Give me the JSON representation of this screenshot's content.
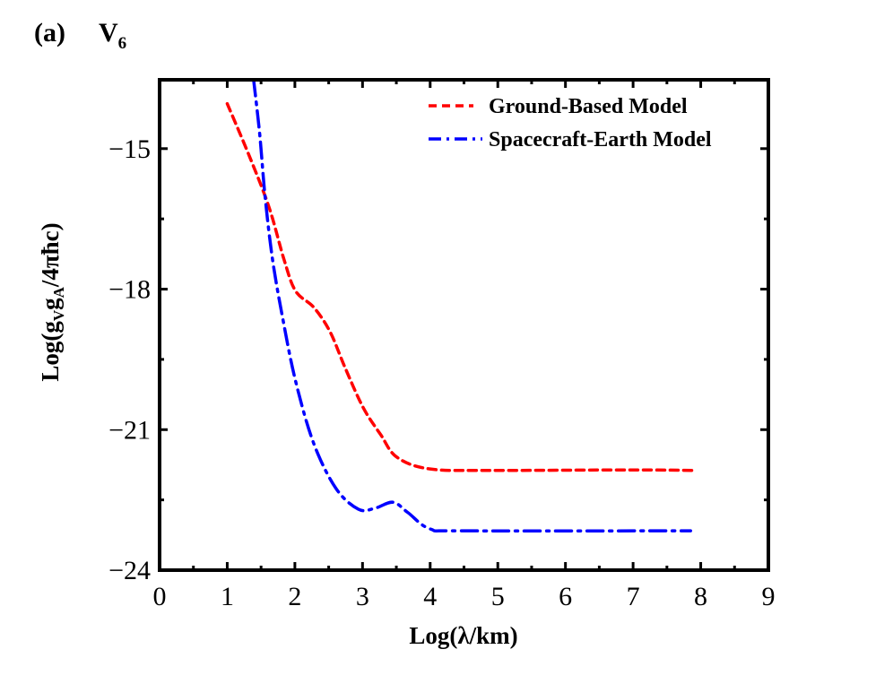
{
  "panel": {
    "label": "(a)",
    "title_main": "V",
    "title_sub": "6"
  },
  "colors": {
    "ground_based": "#ff0000",
    "spacecraft_earth": "#0000ff",
    "axis": "#000000"
  },
  "chart_data": {
    "type": "line",
    "title": "V6",
    "panel_label": "(a)",
    "xlabel": "Log(λ/km)",
    "ylabel": "Log(gVgA/4πħc)",
    "xlim": [
      0,
      9
    ],
    "ylim": [
      -24,
      -13.53
    ],
    "xticks": [
      0,
      1,
      2,
      3,
      4,
      5,
      6,
      7,
      8,
      9
    ],
    "yticks": [
      -24,
      -21,
      -18,
      -15
    ],
    "grid": false,
    "legend_position": "upper right",
    "series": [
      {
        "name": "Ground-Based Model",
        "color": "#ff0000",
        "line_style": "dashed",
        "x": [
          1.0,
          1.33,
          1.62,
          1.84,
          2.01,
          2.28,
          2.52,
          2.74,
          3.01,
          3.27,
          3.51,
          4.0,
          4.93,
          6.92,
          7.91
        ],
        "y": [
          -14.04,
          -15.17,
          -16.26,
          -17.37,
          -18.04,
          -18.39,
          -18.91,
          -19.67,
          -20.53,
          -21.11,
          -21.59,
          -21.84,
          -21.87,
          -21.86,
          -21.87
        ]
      },
      {
        "name": "Spacecraft-Earth Model",
        "color": "#0000ff",
        "line_style": "dash-dot",
        "x": [
          1.39,
          1.48,
          1.56,
          1.67,
          1.82,
          2.01,
          2.28,
          2.61,
          2.94,
          3.18,
          3.45,
          3.67,
          4.0,
          4.53,
          7.85
        ],
        "y": [
          -13.53,
          -14.69,
          -16.03,
          -17.37,
          -18.62,
          -19.96,
          -21.3,
          -22.26,
          -22.7,
          -22.68,
          -22.55,
          -22.77,
          -23.12,
          -23.16,
          -23.16
        ]
      }
    ]
  },
  "axes": {
    "x_tick_labels": [
      "0",
      "1",
      "2",
      "3",
      "4",
      "5",
      "6",
      "7",
      "8",
      "9"
    ],
    "y_tick_labels": [
      "−15",
      "−18",
      "−21",
      "−24"
    ],
    "xlabel": "Log(λ/km)",
    "ylabel_parts": {
      "prefix": "Log(g",
      "sub1": "V",
      "mid": "g",
      "sub2": "A",
      "suffix": "/4πħc)"
    }
  },
  "legend": {
    "items": [
      {
        "label": "Ground-Based Model"
      },
      {
        "label": "Spacecraft-Earth Model"
      }
    ]
  }
}
